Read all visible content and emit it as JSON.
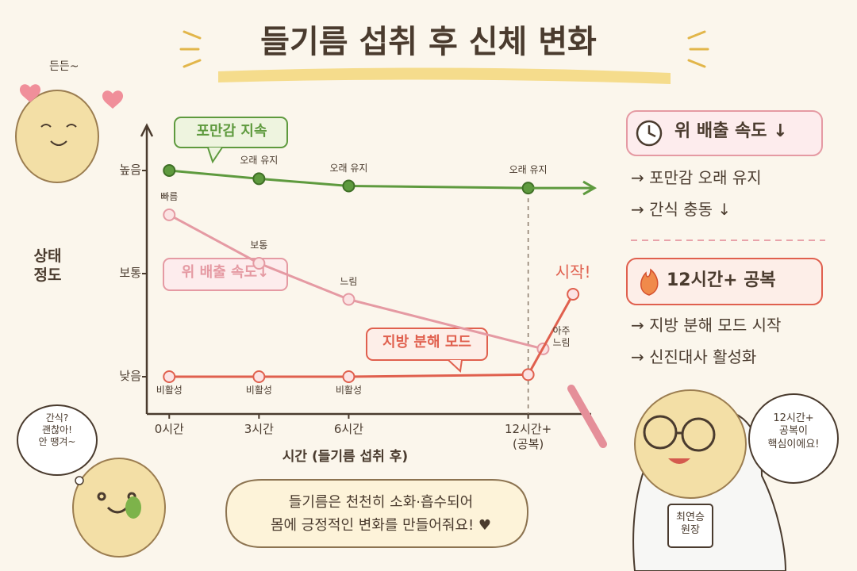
{
  "title": "들기름 섭취 후 신체 변화",
  "chart_data": {
    "type": "line",
    "x_label": "시간 (들기름 섭취 후)",
    "y_label": "상태\n정도",
    "xlim": [
      -0.75,
      14
    ],
    "xticks": [
      {
        "value": 0,
        "label": "0시간"
      },
      {
        "value": 3,
        "label": "3시간"
      },
      {
        "value": 6,
        "label": "6시간"
      },
      {
        "value": 12,
        "label": "12시간+\n(공복)"
      }
    ],
    "ylim": [
      0.65,
      3.35
    ],
    "yticks": [
      {
        "value": 1,
        "label": "낮음"
      },
      {
        "value": 2,
        "label": "보통"
      },
      {
        "value": 3,
        "label": "높음"
      }
    ],
    "marker_line_x": 12,
    "series": [
      {
        "name": "포만감 지속",
        "color": "#5e9a3e",
        "x": [
          0,
          3,
          6,
          12
        ],
        "values": [
          3,
          2.92,
          2.85,
          2.83
        ],
        "point_labels": [
          null,
          "오래 유지",
          "오래 유지",
          "오래 유지"
        ]
      },
      {
        "name": "위 배출 속도↓",
        "color": "#e59aa3",
        "x": [
          0,
          3,
          6,
          12.5
        ],
        "values": [
          2.57,
          2.1,
          1.75,
          1.27
        ],
        "point_labels": [
          "빠름",
          "보통",
          "느림",
          "아주\n느림"
        ]
      },
      {
        "name": "지방 분해 모드",
        "color": "#e0604e",
        "x": [
          0,
          3,
          6,
          12,
          13.5
        ],
        "values": [
          1,
          1,
          1,
          1.02,
          1.8
        ],
        "point_labels": [
          "비활성",
          "비활성",
          "비활성",
          null,
          "시작!"
        ]
      }
    ]
  },
  "side_panel": [
    {
      "heading": "위 배출 속도 ↓",
      "items": [
        "→ 포만감 오래 유지",
        "→ 간식 충동 ↓"
      ]
    },
    {
      "heading": "12시간+ 공복",
      "items": [
        "→ 지방 분해 모드 시작",
        "→ 신진대사 활성화"
      ]
    }
  ],
  "characters": {
    "top_left": "든든~",
    "bottom_left": "간식?\n괜찮아!\n안 땡겨~",
    "doctor_speech": "12시간+\n공복이\n핵심이에요!",
    "doctor_badge": "최연승\n원장"
  },
  "footer_bubble": "들기름은 천천히 소화·흡수되어\n몸에 긍정적인 변화를 만들어줘요! ♥"
}
